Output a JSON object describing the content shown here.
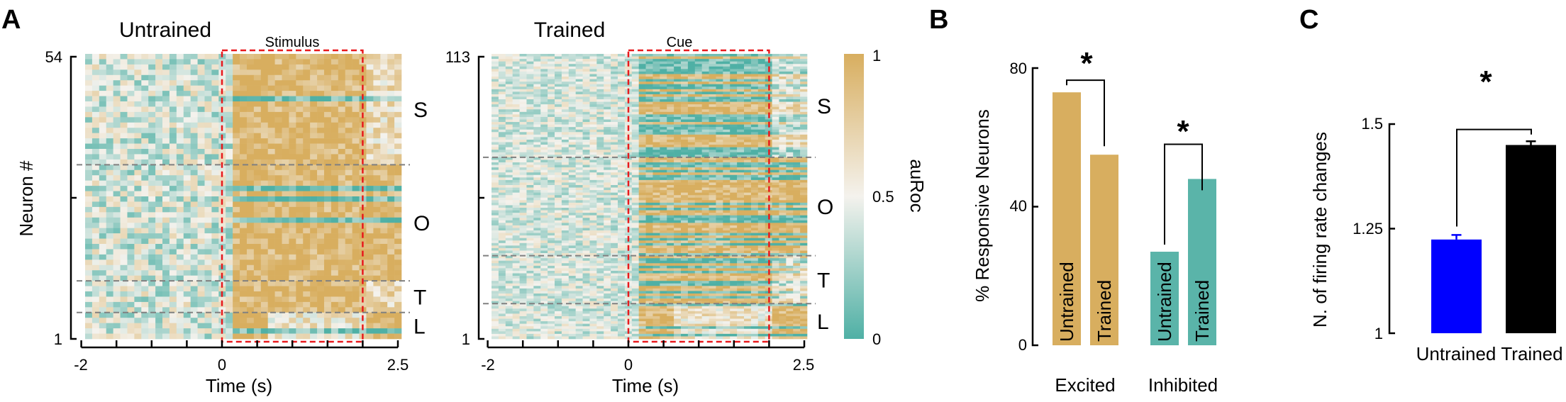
{
  "colors": {
    "low": "#4fb0a5",
    "mid": "#f4f2ed",
    "high": "#d8ae5f",
    "window_box": "#e8191c",
    "divider": "#808080",
    "blue_bar": "#0000ff",
    "black_bar": "#000000"
  },
  "panels": {
    "a": "A",
    "b": "B",
    "c": "C"
  },
  "chart_data": [
    {
      "type": "heatmap",
      "title": "Untrained",
      "window_label": "Stimulus",
      "xlabel": "Time (s)",
      "ylabel": "Neuron #",
      "xlim": [
        -2,
        2.5
      ],
      "x_ticks": [
        "-2",
        "0",
        "2.5"
      ],
      "y_ticks": [
        "54",
        "1"
      ],
      "n_neurons": 54,
      "window": [
        0,
        2
      ],
      "groups": [
        {
          "label": "S",
          "size": 21
        },
        {
          "label": "O",
          "size": 22
        },
        {
          "label": "T",
          "size": 6
        },
        {
          "label": "L",
          "size": 5
        }
      ]
    },
    {
      "type": "heatmap",
      "title": "Trained",
      "window_label": "Cue",
      "xlabel": "Time (s)",
      "xlim": [
        -2,
        2.5
      ],
      "x_ticks": [
        "-2",
        "0",
        "2.5"
      ],
      "y_ticks": [
        "113",
        "1"
      ],
      "n_neurons": 113,
      "window": [
        0,
        2
      ],
      "groups": [
        {
          "label": "S",
          "size": 41
        },
        {
          "label": "O",
          "size": 39
        },
        {
          "label": "T",
          "size": 19
        },
        {
          "label": "L",
          "size": 14
        }
      ],
      "colorbar": {
        "label": "auRoc",
        "range": [
          0,
          1
        ],
        "ticks": [
          "0",
          "0.5",
          "1"
        ]
      }
    },
    {
      "type": "bar",
      "ylabel": "% Responsive Neurons",
      "ylim": [
        0,
        80
      ],
      "y_ticks": [
        "0",
        "40",
        "80"
      ],
      "categories": [
        "Excited",
        "Inhibited"
      ],
      "bars": [
        {
          "category": "Excited",
          "label": "Untrained",
          "value": 73
        },
        {
          "category": "Excited",
          "label": "Trained",
          "value": 55
        },
        {
          "category": "Inhibited",
          "label": "Untrained",
          "value": 27
        },
        {
          "category": "Inhibited",
          "label": "Trained",
          "value": 48
        }
      ],
      "significance": [
        "*",
        "*"
      ]
    },
    {
      "type": "bar",
      "ylabel": "N. of firing rate changes",
      "ylim": [
        1,
        1.5
      ],
      "y_ticks": [
        "1",
        "1.25",
        "1.5"
      ],
      "categories": [
        "Untrained",
        "Trained"
      ],
      "values": [
        1.224,
        1.45
      ],
      "errors": [
        0.011,
        0.009
      ],
      "significance": "*"
    }
  ]
}
